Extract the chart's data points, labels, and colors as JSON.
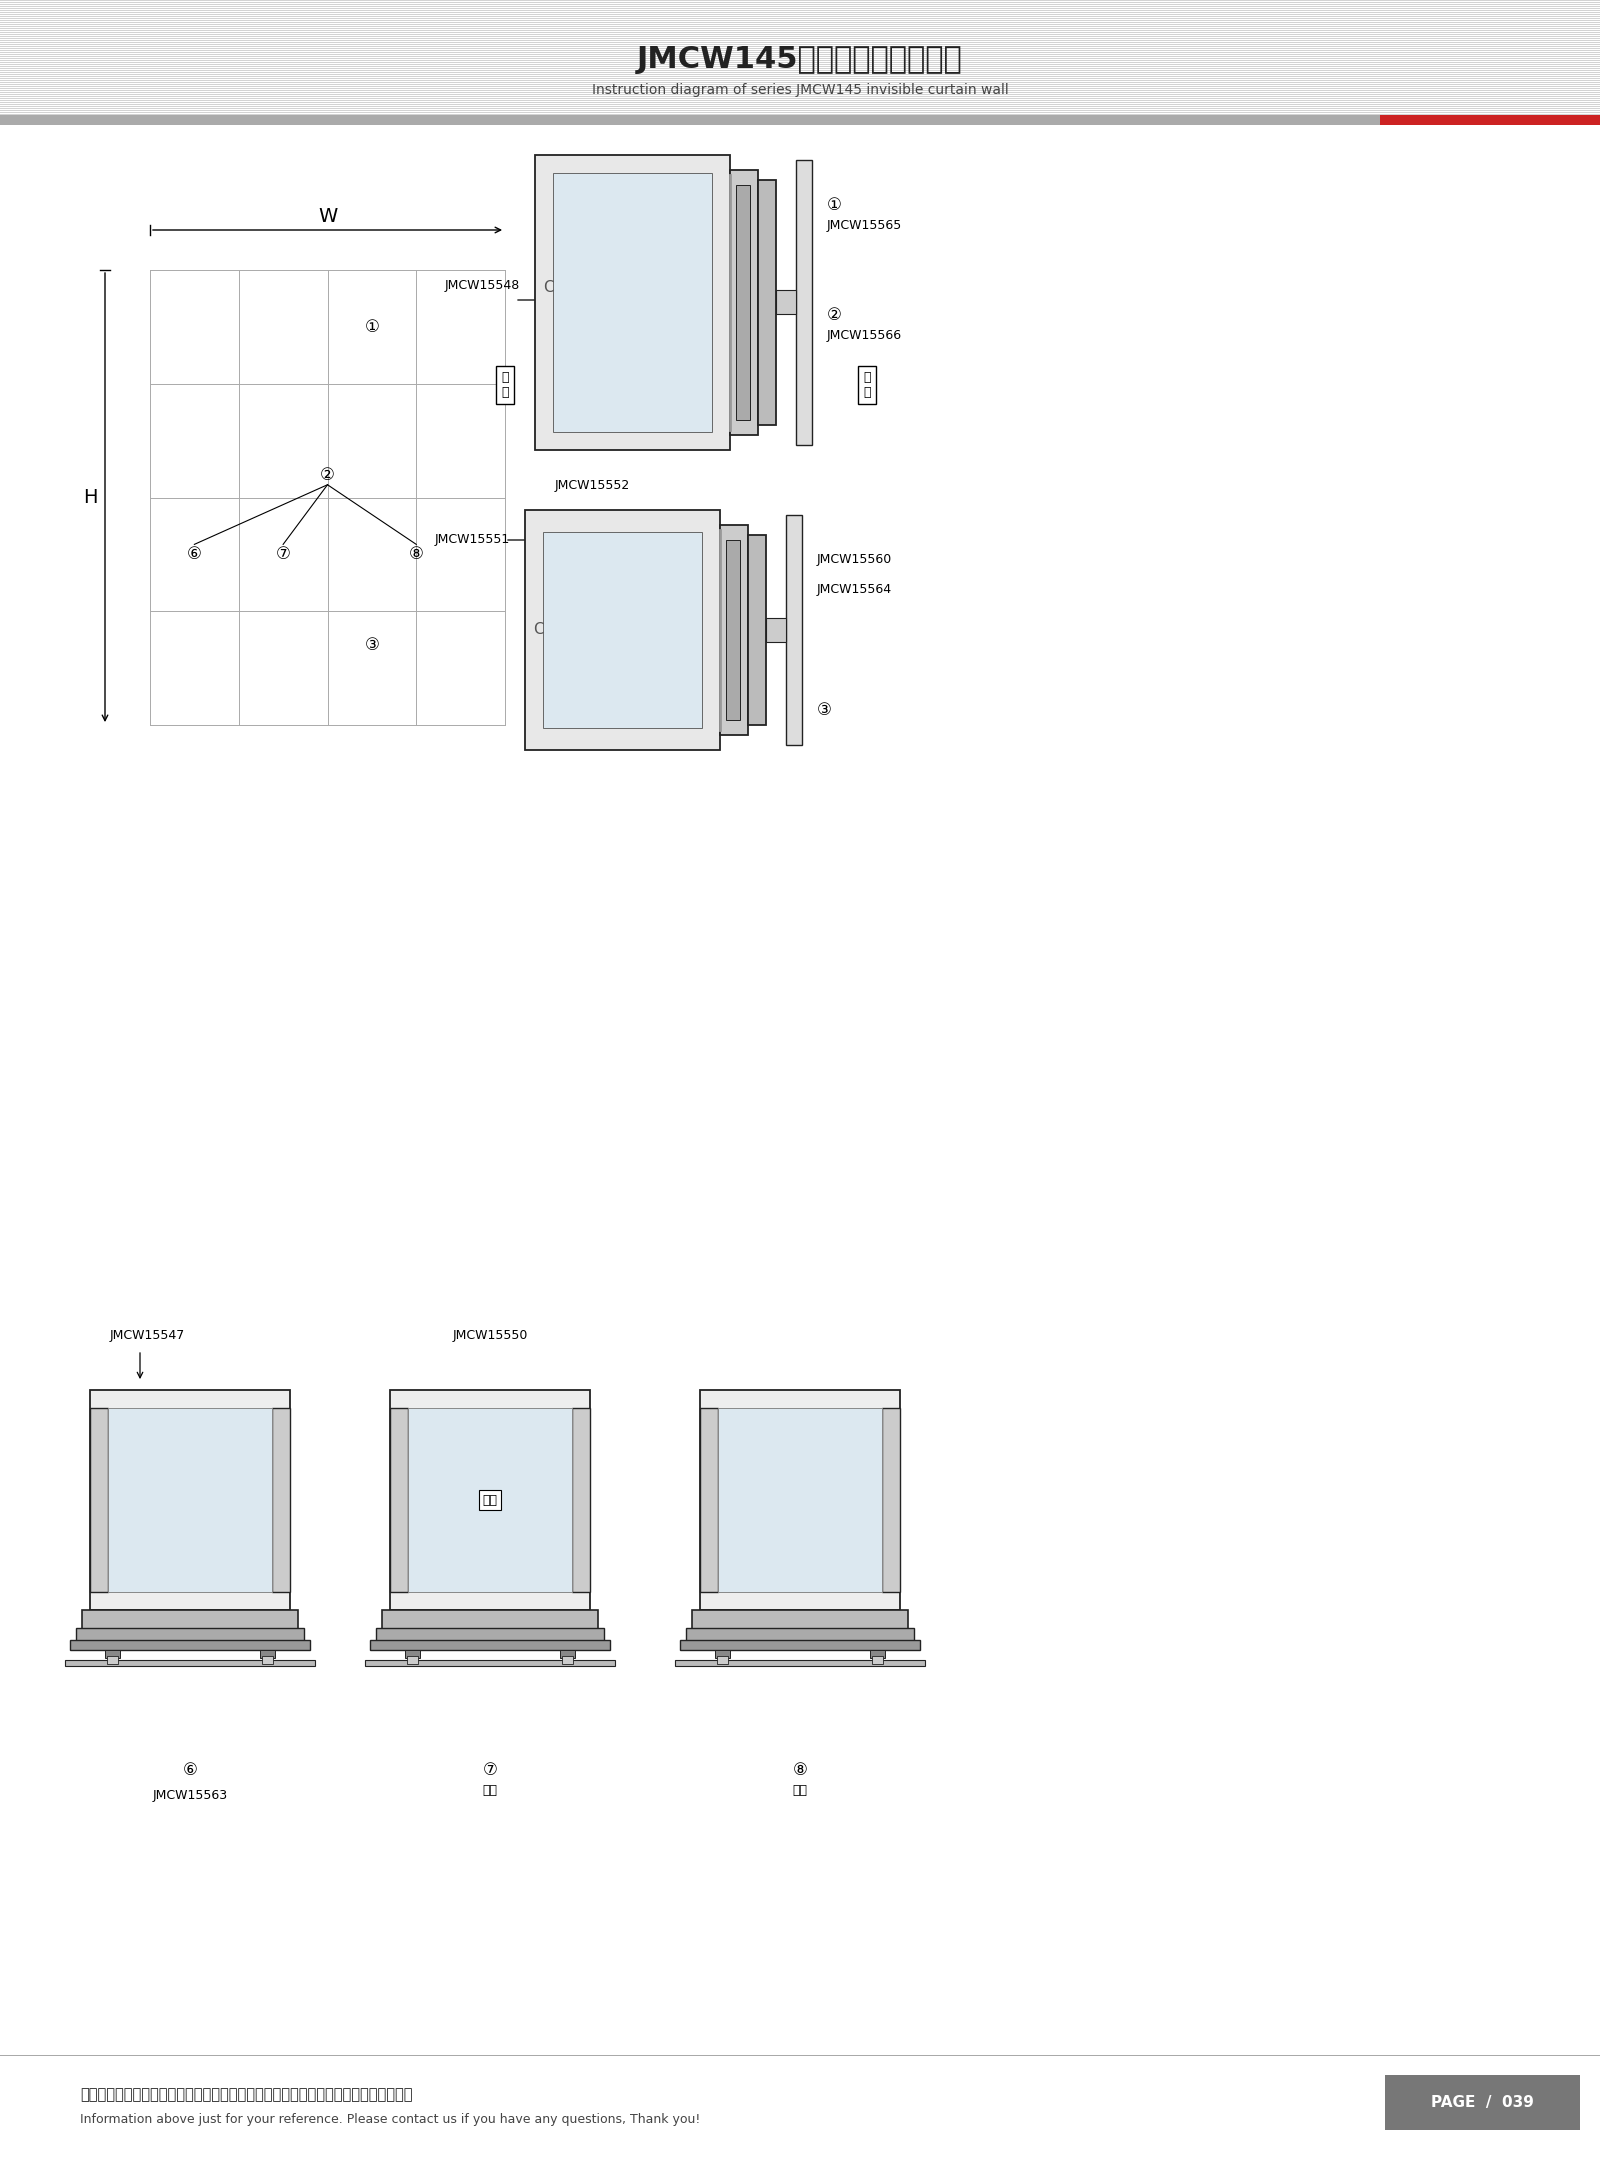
{
  "title_cn": "JMCW145系列隐框幕墙结构图",
  "title_en": "Instruction diagram of series JMCW145 invisible curtain wall",
  "footer_cn": "图中所示型材截面、装配、编号、尺寸及重量仅供参考。如有疑问，请向本公司查询。",
  "footer_en": "Information above just for your reference. Please contact us if you have any questions, Thank you!",
  "page": "PAGE  /  039",
  "lc": "#333333",
  "gc": "#888888",
  "fc_gray": "#d0d0d0",
  "fc_light": "#f0f0f0",
  "fc_white": "#ffffff",
  "labels": {
    "circle1": "①",
    "circle2": "②",
    "circle3": "③",
    "circle6": "⑥",
    "circle7": "⑦",
    "circle8": "⑧",
    "W": "W",
    "H": "H",
    "indoor_v": "室\n内",
    "outdoor_v": "室\n外",
    "indoor_h": "室内",
    "outdoor_h": "室外",
    "JMCW15565": "JMCW15565",
    "JMCW15566": "JMCW15566",
    "JMCW15548": "JMCW15548",
    "JMCW15552": "JMCW15552",
    "JMCW15551": "JMCW15551",
    "JMCW15560": "JMCW15560",
    "JMCW15564": "JMCW15564",
    "JMCW15547": "JMCW15547",
    "JMCW15550": "JMCW15550",
    "JMCW15563": "JMCW15563",
    "C_label": "C"
  }
}
